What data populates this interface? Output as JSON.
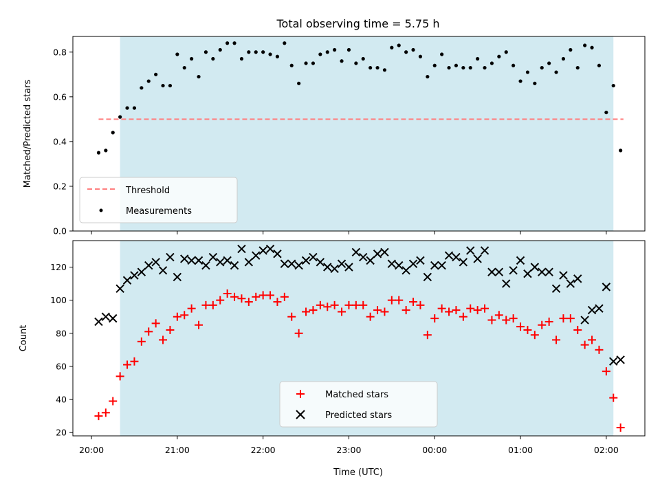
{
  "chart_data": [
    {
      "type": "scatter",
      "title": "Total observing time = 5.75 h",
      "xlabel": "",
      "ylabel": "Matched/Predicted stars",
      "ylim": [
        0.0,
        0.87
      ],
      "yticks": [
        "0.0",
        "0.2",
        "0.4",
        "0.6",
        "0.8"
      ],
      "shaded_interval": {
        "start": "20:20",
        "end": "02:05",
        "color": "#add8e6"
      },
      "threshold": {
        "name": "Threshold",
        "value": 0.5,
        "x_start": "20:05",
        "x_end": "02:12",
        "color": "#ff7f7f",
        "style": "dashed"
      },
      "legend_position": "lower-left",
      "series": [
        {
          "name": "Measurements",
          "marker": "dot",
          "color": "#000000",
          "x": [
            "20:05",
            "20:10",
            "20:15",
            "20:20",
            "20:25",
            "20:30",
            "20:35",
            "20:40",
            "20:45",
            "20:50",
            "20:55",
            "21:00",
            "21:05",
            "21:10",
            "21:15",
            "21:20",
            "21:25",
            "21:30",
            "21:35",
            "21:40",
            "21:45",
            "21:50",
            "21:55",
            "22:00",
            "22:05",
            "22:10",
            "22:15",
            "22:20",
            "22:25",
            "22:30",
            "22:35",
            "22:40",
            "22:45",
            "22:50",
            "22:55",
            "23:00",
            "23:05",
            "23:10",
            "23:15",
            "23:20",
            "23:25",
            "23:30",
            "23:35",
            "23:40",
            "23:45",
            "23:50",
            "23:55",
            "00:00",
            "00:05",
            "00:10",
            "00:15",
            "00:20",
            "00:25",
            "00:30",
            "00:35",
            "00:40",
            "00:45",
            "00:50",
            "00:55",
            "01:00",
            "01:05",
            "01:10",
            "01:15",
            "01:20",
            "01:25",
            "01:30",
            "01:35",
            "01:40",
            "01:45",
            "01:50",
            "01:55",
            "02:00",
            "02:05",
            "02:10"
          ],
          "y": [
            0.35,
            0.36,
            0.44,
            0.51,
            0.55,
            0.55,
            0.64,
            0.67,
            0.7,
            0.65,
            0.65,
            0.79,
            0.73,
            0.77,
            0.69,
            0.8,
            0.77,
            0.81,
            0.84,
            0.84,
            0.77,
            0.8,
            0.8,
            0.8,
            0.79,
            0.78,
            0.84,
            0.74,
            0.66,
            0.75,
            0.75,
            0.79,
            0.8,
            0.81,
            0.76,
            0.81,
            0.75,
            0.77,
            0.73,
            0.73,
            0.72,
            0.82,
            0.83,
            0.8,
            0.81,
            0.78,
            0.69,
            0.74,
            0.79,
            0.73,
            0.74,
            0.73,
            0.73,
            0.77,
            0.73,
            0.75,
            0.78,
            0.8,
            0.74,
            0.67,
            0.71,
            0.66,
            0.73,
            0.75,
            0.71,
            0.77,
            0.81,
            0.73,
            0.83,
            0.82,
            0.74,
            0.53,
            0.65,
            0.36
          ]
        }
      ]
    },
    {
      "type": "scatter",
      "title": "",
      "xlabel": "Time (UTC)",
      "ylabel": "Count",
      "ylim": [
        18,
        136
      ],
      "yticks": [
        "20",
        "40",
        "60",
        "80",
        "100",
        "120"
      ],
      "xticks": [
        "20:00",
        "21:00",
        "22:00",
        "23:00",
        "00:00",
        "01:00",
        "02:00"
      ],
      "shaded_interval": {
        "start": "20:20",
        "end": "02:05",
        "color": "#add8e6"
      },
      "legend_position": "lower-center",
      "series": [
        {
          "name": "Matched stars",
          "marker": "plus",
          "color": "#ff0000",
          "x": [
            "20:05",
            "20:10",
            "20:15",
            "20:20",
            "20:25",
            "20:30",
            "20:35",
            "20:40",
            "20:45",
            "20:50",
            "20:55",
            "21:00",
            "21:05",
            "21:10",
            "21:15",
            "21:20",
            "21:25",
            "21:30",
            "21:35",
            "21:40",
            "21:45",
            "21:50",
            "21:55",
            "22:00",
            "22:05",
            "22:10",
            "22:15",
            "22:20",
            "22:25",
            "22:30",
            "22:35",
            "22:40",
            "22:45",
            "22:50",
            "22:55",
            "23:00",
            "23:05",
            "23:10",
            "23:15",
            "23:20",
            "23:25",
            "23:30",
            "23:35",
            "23:40",
            "23:45",
            "23:50",
            "23:55",
            "00:00",
            "00:05",
            "00:10",
            "00:15",
            "00:20",
            "00:25",
            "00:30",
            "00:35",
            "00:40",
            "00:45",
            "00:50",
            "00:55",
            "01:00",
            "01:05",
            "01:10",
            "01:15",
            "01:20",
            "01:25",
            "01:30",
            "01:35",
            "01:40",
            "01:45",
            "01:50",
            "01:55",
            "02:00",
            "02:05",
            "02:10"
          ],
          "y": [
            30,
            32,
            39,
            54,
            61,
            63,
            75,
            81,
            86,
            76,
            82,
            90,
            91,
            95,
            85,
            97,
            97,
            100,
            104,
            102,
            101,
            99,
            102,
            103,
            103,
            99,
            102,
            90,
            80,
            93,
            94,
            97,
            96,
            97,
            93,
            97,
            97,
            97,
            90,
            94,
            93,
            100,
            100,
            94,
            99,
            97,
            79,
            89,
            95,
            93,
            94,
            90,
            95,
            94,
            95,
            88,
            91,
            88,
            89,
            84,
            82,
            79,
            85,
            87,
            76,
            89,
            89,
            82,
            73,
            76,
            70,
            57,
            41,
            23
          ]
        },
        {
          "name": "Predicted stars",
          "marker": "x",
          "color": "#000000",
          "x": [
            "20:05",
            "20:10",
            "20:15",
            "20:20",
            "20:25",
            "20:30",
            "20:35",
            "20:40",
            "20:45",
            "20:50",
            "20:55",
            "21:00",
            "21:05",
            "21:10",
            "21:15",
            "21:20",
            "21:25",
            "21:30",
            "21:35",
            "21:40",
            "21:45",
            "21:50",
            "21:55",
            "22:00",
            "22:05",
            "22:10",
            "22:15",
            "22:20",
            "22:25",
            "22:30",
            "22:35",
            "22:40",
            "22:45",
            "22:50",
            "22:55",
            "23:00",
            "23:05",
            "23:10",
            "23:15",
            "23:20",
            "23:25",
            "23:30",
            "23:35",
            "23:40",
            "23:45",
            "23:50",
            "23:55",
            "00:00",
            "00:05",
            "00:10",
            "00:15",
            "00:20",
            "00:25",
            "00:30",
            "00:35",
            "00:40",
            "00:45",
            "00:50",
            "00:55",
            "01:00",
            "01:05",
            "01:10",
            "01:15",
            "01:20",
            "01:25",
            "01:30",
            "01:35",
            "01:40",
            "01:45",
            "01:50",
            "01:55",
            "02:00",
            "02:05",
            "02:10"
          ],
          "y": [
            87,
            90,
            89,
            107,
            112,
            115,
            117,
            121,
            123,
            118,
            126,
            114,
            125,
            124,
            124,
            121,
            126,
            123,
            124,
            121,
            131,
            123,
            127,
            130,
            131,
            128,
            122,
            122,
            121,
            124,
            126,
            123,
            120,
            119,
            122,
            120,
            129,
            126,
            124,
            128,
            129,
            122,
            121,
            118,
            122,
            124,
            114,
            121,
            121,
            127,
            126,
            123,
            130,
            125,
            130,
            117,
            117,
            110,
            118,
            124,
            116,
            120,
            117,
            117,
            107,
            115,
            110,
            113,
            88,
            94,
            95,
            108,
            63,
            64
          ]
        }
      ]
    }
  ]
}
